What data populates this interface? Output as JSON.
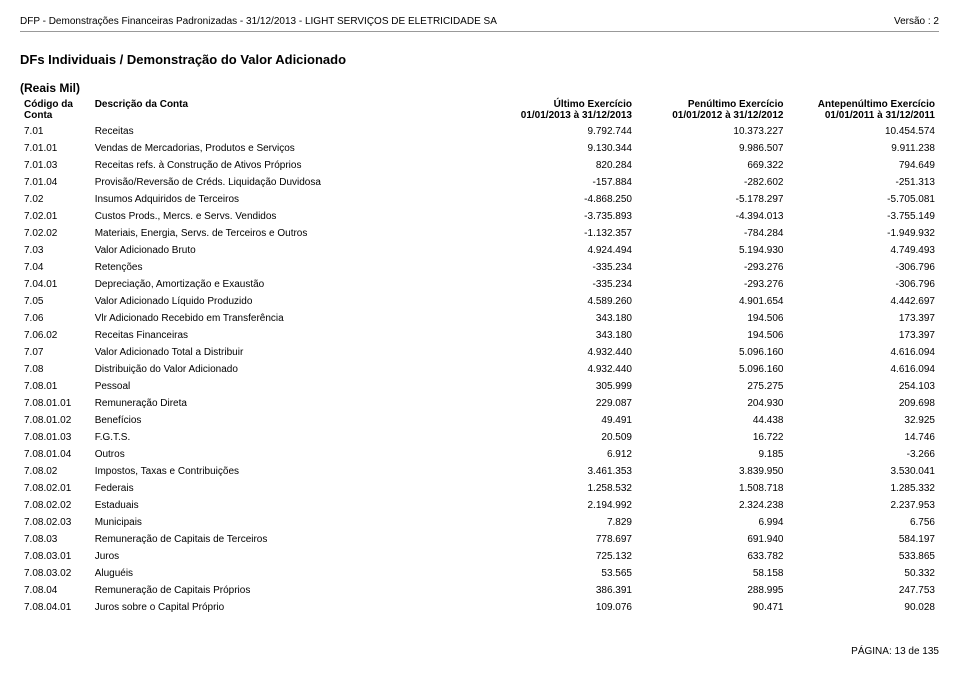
{
  "page": {
    "header_left": "DFP - Demonstrações Financeiras Padronizadas - 31/12/2013 - LIGHT SERVIÇOS DE ELETRICIDADE SA",
    "version_label": "Versão : 2",
    "section_title": "DFs Individuais / Demonstração do Valor Adicionado",
    "unit_label": "(Reais Mil)",
    "footer": "PÁGINA: 13 de 135"
  },
  "columns": {
    "code_header_l1": "Código da",
    "code_header_l2": "Conta",
    "desc_header": "Descrição da Conta",
    "c1_l1": "Último Exercício",
    "c1_l2": "01/01/2013 à 31/12/2013",
    "c2_l1": "Penúltimo Exercício",
    "c2_l2": "01/01/2012 à 31/12/2012",
    "c3_l1": "Antepenúltimo Exercício",
    "c3_l2": "01/01/2011 à 31/12/2011"
  },
  "rows": [
    {
      "code": "7.01",
      "desc": "Receitas",
      "v1": "9.792.744",
      "v2": "10.373.227",
      "v3": "10.454.574"
    },
    {
      "code": "7.01.01",
      "desc": "Vendas de Mercadorias, Produtos e Serviços",
      "v1": "9.130.344",
      "v2": "9.986.507",
      "v3": "9.911.238"
    },
    {
      "code": "7.01.03",
      "desc": "Receitas refs. à Construção de Ativos Próprios",
      "v1": "820.284",
      "v2": "669.322",
      "v3": "794.649"
    },
    {
      "code": "7.01.04",
      "desc": "Provisão/Reversão de Créds. Liquidação Duvidosa",
      "v1": "-157.884",
      "v2": "-282.602",
      "v3": "-251.313"
    },
    {
      "code": "7.02",
      "desc": "Insumos Adquiridos de Terceiros",
      "v1": "-4.868.250",
      "v2": "-5.178.297",
      "v3": "-5.705.081"
    },
    {
      "code": "7.02.01",
      "desc": "Custos Prods., Mercs. e Servs. Vendidos",
      "v1": "-3.735.893",
      "v2": "-4.394.013",
      "v3": "-3.755.149"
    },
    {
      "code": "7.02.02",
      "desc": "Materiais, Energia, Servs. de Terceiros e Outros",
      "v1": "-1.132.357",
      "v2": "-784.284",
      "v3": "-1.949.932"
    },
    {
      "code": "7.03",
      "desc": "Valor Adicionado Bruto",
      "v1": "4.924.494",
      "v2": "5.194.930",
      "v3": "4.749.493"
    },
    {
      "code": "7.04",
      "desc": "Retenções",
      "v1": "-335.234",
      "v2": "-293.276",
      "v3": "-306.796"
    },
    {
      "code": "7.04.01",
      "desc": "Depreciação, Amortização e Exaustão",
      "v1": "-335.234",
      "v2": "-293.276",
      "v3": "-306.796"
    },
    {
      "code": "7.05",
      "desc": "Valor Adicionado Líquido Produzido",
      "v1": "4.589.260",
      "v2": "4.901.654",
      "v3": "4.442.697"
    },
    {
      "code": "7.06",
      "desc": "Vlr Adicionado Recebido em Transferência",
      "v1": "343.180",
      "v2": "194.506",
      "v3": "173.397"
    },
    {
      "code": "7.06.02",
      "desc": "Receitas Financeiras",
      "v1": "343.180",
      "v2": "194.506",
      "v3": "173.397"
    },
    {
      "code": "7.07",
      "desc": "Valor Adicionado Total a Distribuir",
      "v1": "4.932.440",
      "v2": "5.096.160",
      "v3": "4.616.094"
    },
    {
      "code": "7.08",
      "desc": "Distribuição do Valor Adicionado",
      "v1": "4.932.440",
      "v2": "5.096.160",
      "v3": "4.616.094"
    },
    {
      "code": "7.08.01",
      "desc": "Pessoal",
      "v1": "305.999",
      "v2": "275.275",
      "v3": "254.103"
    },
    {
      "code": "7.08.01.01",
      "desc": "Remuneração Direta",
      "v1": "229.087",
      "v2": "204.930",
      "v3": "209.698"
    },
    {
      "code": "7.08.01.02",
      "desc": "Benefícios",
      "v1": "49.491",
      "v2": "44.438",
      "v3": "32.925"
    },
    {
      "code": "7.08.01.03",
      "desc": "F.G.T.S.",
      "v1": "20.509",
      "v2": "16.722",
      "v3": "14.746"
    },
    {
      "code": "7.08.01.04",
      "desc": "Outros",
      "v1": "6.912",
      "v2": "9.185",
      "v3": "-3.266"
    },
    {
      "code": "7.08.02",
      "desc": "Impostos, Taxas e Contribuições",
      "v1": "3.461.353",
      "v2": "3.839.950",
      "v3": "3.530.041"
    },
    {
      "code": "7.08.02.01",
      "desc": "Federais",
      "v1": "1.258.532",
      "v2": "1.508.718",
      "v3": "1.285.332"
    },
    {
      "code": "7.08.02.02",
      "desc": "Estaduais",
      "v1": "2.194.992",
      "v2": "2.324.238",
      "v3": "2.237.953"
    },
    {
      "code": "7.08.02.03",
      "desc": "Municipais",
      "v1": "7.829",
      "v2": "6.994",
      "v3": "6.756"
    },
    {
      "code": "7.08.03",
      "desc": "Remuneração de Capitais de Terceiros",
      "v1": "778.697",
      "v2": "691.940",
      "v3": "584.197"
    },
    {
      "code": "7.08.03.01",
      "desc": "Juros",
      "v1": "725.132",
      "v2": "633.782",
      "v3": "533.865"
    },
    {
      "code": "7.08.03.02",
      "desc": "Aluguéis",
      "v1": "53.565",
      "v2": "58.158",
      "v3": "50.332"
    },
    {
      "code": "7.08.04",
      "desc": "Remuneração de Capitais Próprios",
      "v1": "386.391",
      "v2": "288.995",
      "v3": "247.753"
    },
    {
      "code": "7.08.04.01",
      "desc": "Juros sobre o Capital Próprio",
      "v1": "109.076",
      "v2": "90.471",
      "v3": "90.028"
    }
  ]
}
